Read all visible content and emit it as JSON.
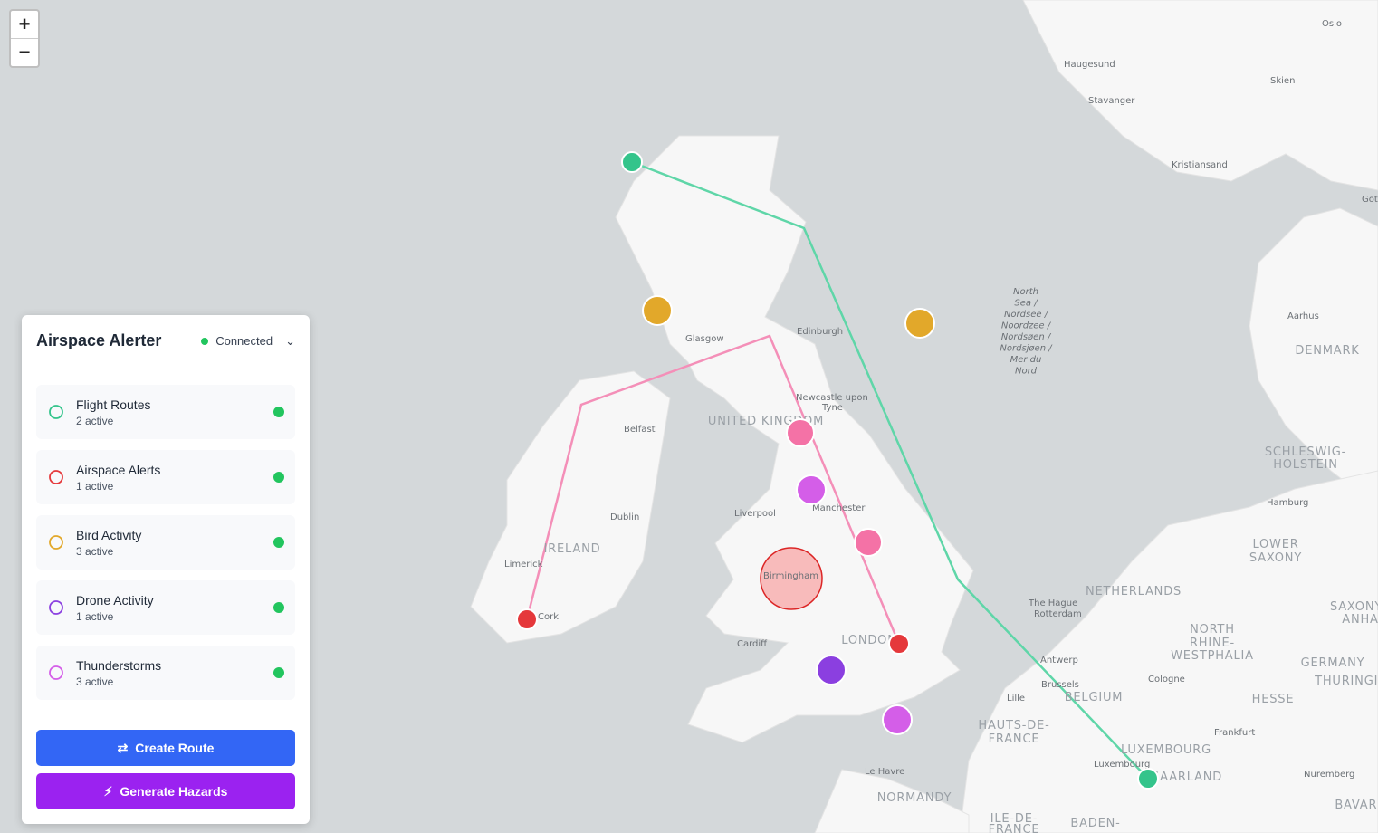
{
  "zoom": {
    "in": "+",
    "out": "−"
  },
  "panel": {
    "title": "Airspace Alerter",
    "status": "Connected",
    "layers": [
      {
        "name": "Flight Routes",
        "count": "2 active"
      },
      {
        "name": "Airspace Alerts",
        "count": "1 active"
      },
      {
        "name": "Bird Activity",
        "count": "3 active"
      },
      {
        "name": "Drone Activity",
        "count": "1 active"
      },
      {
        "name": "Thunderstorms",
        "count": "3 active"
      }
    ],
    "buttons": {
      "create": "Create Route",
      "generate": "Generate Hazards"
    }
  },
  "map": {
    "places": [
      "Oslo",
      "Haugesund",
      "Skien",
      "Stavanger",
      "Kristiansand",
      "Gothenburg",
      "Aarhus",
      "DENMARK",
      "Edinburgh",
      "Glasgow",
      "Newcastle upon",
      "Tyne",
      "UNITED KINGDOM",
      "Belfast",
      "SCHLESWIG-",
      "HOLSTEIN",
      "Hamburg",
      "Dublin",
      "Liverpool",
      "Manchester",
      "IRELAND",
      "Limerick",
      "LOWER",
      "SAXONY",
      "Birmingham",
      "Cork",
      "The Hague",
      "Rotterdam",
      "NETHERLANDS",
      "NORTH",
      "RHINE-",
      "WESTPHALIA",
      "Cardiff",
      "LONDON",
      "Antwerp",
      "Cologne",
      "GERMANY",
      "Brussels",
      "BELGIUM",
      "Lille",
      "HESSE",
      "THURINGIA",
      "SAXONY-",
      "ANHALT",
      "HAUTS-DE-",
      "FRANCE",
      "Frankfurt",
      "LUXEMBOURG",
      "Luxembourg",
      "SAARLAND",
      "Nuremberg",
      "Le Havre",
      "NORMANDY",
      "ILE-DE-",
      "FRANCE",
      "BAVARIA",
      "BADEN-"
    ],
    "sea": [
      "North",
      "Sea /",
      "Nordsee /",
      "Noordzee /",
      "Nordsøen /",
      "Nordsjøen /",
      "Mer du",
      "Nord"
    ]
  }
}
